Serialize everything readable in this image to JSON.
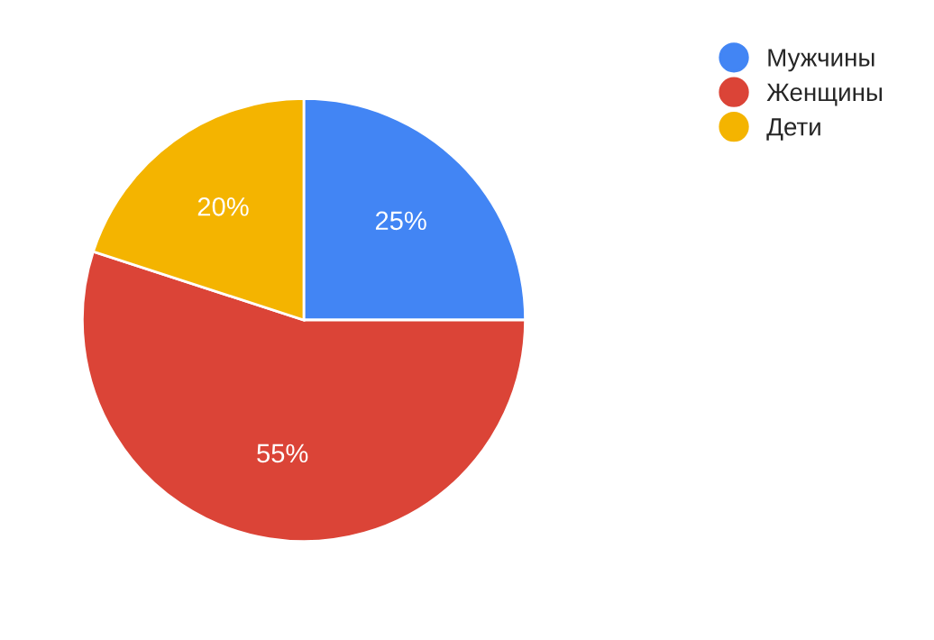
{
  "chart_data": {
    "type": "pie",
    "categories": [
      "Мужчины",
      "Женщины",
      "Дети"
    ],
    "values": [
      25,
      55,
      20
    ],
    "colors": [
      "#4285f4",
      "#db4437",
      "#f4b400"
    ],
    "value_labels": [
      "25%",
      "55%",
      "20%"
    ],
    "legend": "top right"
  }
}
